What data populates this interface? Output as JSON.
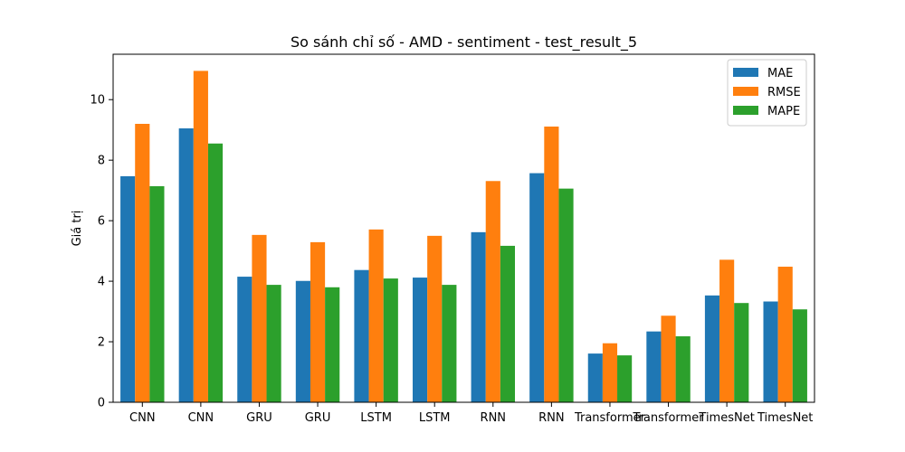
{
  "chart_data": {
    "type": "bar",
    "title": "So sánh chỉ số - AMD - sentiment - test_result_5",
    "xlabel": "",
    "ylabel": "Giá trị",
    "ylim": [
      0,
      11.5
    ],
    "yticks": [
      0,
      2,
      4,
      6,
      8,
      10
    ],
    "grid": false,
    "legend_position": "top-right",
    "categories": [
      "CNN",
      "CNN",
      "GRU",
      "GRU",
      "LSTM",
      "LSTM",
      "RNN",
      "RNN",
      "Transformer",
      "Transformer",
      "TimesNet",
      "TimesNet"
    ],
    "series": [
      {
        "name": "MAE",
        "color": "#1f77b4",
        "values": [
          7.47,
          9.05,
          4.15,
          4.01,
          4.37,
          4.12,
          5.62,
          7.57,
          1.61,
          2.34,
          3.53,
          3.33
        ]
      },
      {
        "name": "RMSE",
        "color": "#ff7f0e",
        "values": [
          9.2,
          10.95,
          5.53,
          5.29,
          5.71,
          5.5,
          7.31,
          9.11,
          1.95,
          2.86,
          4.71,
          4.48
        ]
      },
      {
        "name": "MAPE",
        "color": "#2ca02c",
        "values": [
          7.14,
          8.55,
          3.88,
          3.8,
          4.09,
          3.88,
          5.17,
          7.06,
          1.55,
          2.18,
          3.28,
          3.07
        ]
      }
    ]
  }
}
